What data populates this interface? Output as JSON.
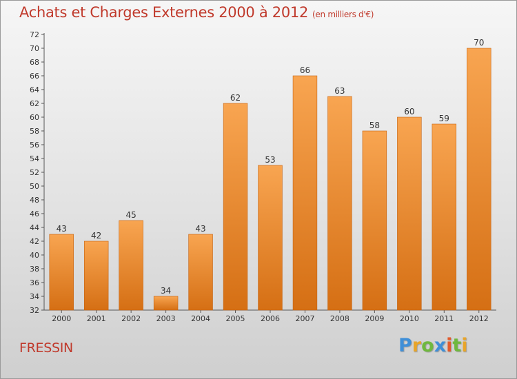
{
  "title": "Achats et Charges Externes 2000 à 2012",
  "subtitle": "(en milliers d'€)",
  "commune": "FRESSIN",
  "logo_letters": [
    "P",
    "r",
    "o",
    "x",
    "i",
    "t",
    "i"
  ],
  "colors": {
    "title": "#c0392b",
    "bar_light": "#f8a551",
    "bar_dark": "#d56f14"
  },
  "chart_data": {
    "type": "bar",
    "title": "Achats et Charges Externes 2000 à 2012",
    "subtitle": "(en milliers d'€)",
    "categories": [
      "2000",
      "2001",
      "2002",
      "2003",
      "2004",
      "2005",
      "2006",
      "2007",
      "2008",
      "2009",
      "2010",
      "2011",
      "2012"
    ],
    "values": [
      43,
      42,
      45,
      34,
      43,
      62,
      53,
      66,
      63,
      58,
      60,
      59,
      70
    ],
    "ylim": [
      32,
      72
    ],
    "ytick_step": 2,
    "grid": false,
    "legend": "none"
  }
}
